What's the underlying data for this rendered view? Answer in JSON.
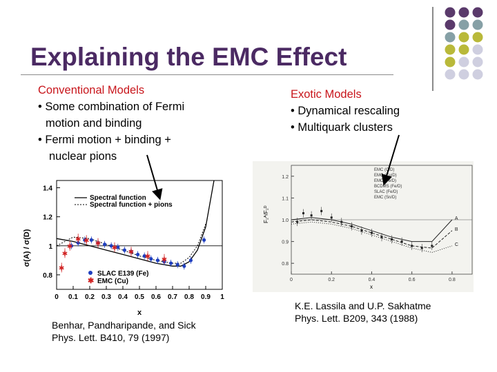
{
  "slide": {
    "title": "Explaining the EMC Effect",
    "left": {
      "heading": "Conventional Models",
      "bullet1_line1": "• Some combination of Fermi",
      "bullet1_line2": "motion and binding",
      "bullet2_line1": "• Fermi motion + binding +",
      "bullet2_line2": "nuclear pions"
    },
    "right": {
      "heading": "Exotic Models",
      "bullet1": "• Dynamical rescaling",
      "bullet2": "• Multiquark clusters"
    },
    "left_caption": {
      "line1": "Benhar, Pandharipande, and Sick",
      "line2": "Phys. Lett. B410, 79 (1997)"
    },
    "right_caption": {
      "line1": "K.E. Lassila and U.P. Sakhatme",
      "line2": "Phys. Lett. B209, 343 (1988)"
    },
    "colors": {
      "title": "#4b2a63",
      "heading": "#c8151b",
      "dot_purple": "#5a3a6b",
      "dot_teal": "#86a0a6",
      "dot_olive": "#b9b93a",
      "dot_lavender": "#cfcfe0"
    }
  },
  "chart_left": {
    "ylabel": "σ(A) / σ(D)",
    "xlabel": "x",
    "yticks": [
      "0.8",
      "1",
      "1.2",
      "1.4"
    ],
    "xticks": [
      "0",
      "0.1",
      "0.2",
      "0.3",
      "0.4",
      "0.5",
      "0.6",
      "0.7",
      "0.8",
      "0.9",
      "1"
    ],
    "legend1": "Spectral function",
    "legend2": "Spectral function + pions",
    "legend3": "SLAC E139 (Fe)",
    "legend4": "EMC (Cu)"
  },
  "chart_right": {
    "yticks": [
      "1.2",
      "1.1",
      "1.0",
      "0.9",
      "0.8"
    ],
    "xticks": [
      "0",
      "0.2",
      "0.4",
      "0.6",
      "0.8"
    ],
    "xlabel": "x",
    "legend": [
      "EMC  (C/D)",
      "EMC  (Cu/D)",
      "EMC  (Fe/D)",
      "BCDMS  (Fe/D)",
      "SLAC  (Fe/D)",
      "EMC  (Sn/D)"
    ]
  },
  "chart_data": [
    {
      "type": "line",
      "title": "",
      "xlabel": "x",
      "ylabel": "σ(A) / σ(D)",
      "xlim": [
        0,
        1
      ],
      "ylim": [
        0.7,
        1.45
      ],
      "series": [
        {
          "name": "Spectral function",
          "x": [
            0,
            0.1,
            0.2,
            0.3,
            0.4,
            0.5,
            0.6,
            0.7,
            0.75,
            0.8,
            0.85,
            0.9,
            0.95
          ],
          "y": [
            1.05,
            1.03,
            1.0,
            0.97,
            0.94,
            0.91,
            0.88,
            0.86,
            0.86,
            0.89,
            0.97,
            1.13,
            1.45
          ]
        },
        {
          "name": "Spectral function + pions",
          "x": [
            0,
            0.1,
            0.2,
            0.3,
            0.4,
            0.5,
            0.6,
            0.7,
            0.75,
            0.8,
            0.85,
            0.9
          ],
          "y": [
            1.0,
            1.06,
            1.05,
            1.01,
            0.97,
            0.93,
            0.9,
            0.88,
            0.88,
            0.92,
            1.0,
            1.15
          ]
        },
        {
          "name": "SLAC E139 (Fe)",
          "x": [
            0.09,
            0.13,
            0.17,
            0.21,
            0.25,
            0.29,
            0.33,
            0.37,
            0.41,
            0.45,
            0.49,
            0.53,
            0.57,
            0.61,
            0.65,
            0.69,
            0.73,
            0.77,
            0.81,
            0.89
          ],
          "y": [
            1.0,
            1.02,
            1.04,
            1.04,
            1.02,
            1.01,
            1.0,
            0.99,
            0.97,
            0.96,
            0.94,
            0.93,
            0.91,
            0.9,
            0.89,
            0.88,
            0.87,
            0.86,
            0.9,
            1.04
          ]
        },
        {
          "name": "EMC (Cu)",
          "x": [
            0.03,
            0.05,
            0.08,
            0.13,
            0.18,
            0.25,
            0.35,
            0.45,
            0.55,
            0.65
          ],
          "y": [
            0.85,
            0.95,
            1.0,
            1.05,
            1.04,
            1.02,
            0.99,
            0.96,
            0.93,
            0.91
          ]
        }
      ]
    },
    {
      "type": "line",
      "title": "",
      "xlabel": "x",
      "ylabel": "",
      "xlim": [
        0,
        0.9
      ],
      "ylim": [
        0.75,
        1.25
      ],
      "series": [
        {
          "name": "A",
          "x": [
            0,
            0.1,
            0.2,
            0.3,
            0.4,
            0.5,
            0.6,
            0.7,
            0.8
          ],
          "y": [
            1.0,
            1.01,
            1.0,
            0.98,
            0.95,
            0.92,
            0.9,
            0.9,
            1.0
          ]
        },
        {
          "name": "B",
          "x": [
            0,
            0.1,
            0.2,
            0.3,
            0.4,
            0.5,
            0.6,
            0.7,
            0.8
          ],
          "y": [
            0.99,
            1.0,
            0.99,
            0.97,
            0.94,
            0.91,
            0.88,
            0.87,
            0.95
          ]
        },
        {
          "name": "C",
          "x": [
            0,
            0.1,
            0.2,
            0.3,
            0.4,
            0.5,
            0.6,
            0.7,
            0.8
          ],
          "y": [
            0.98,
            0.99,
            0.98,
            0.96,
            0.93,
            0.9,
            0.87,
            0.85,
            0.88
          ]
        }
      ]
    }
  ]
}
